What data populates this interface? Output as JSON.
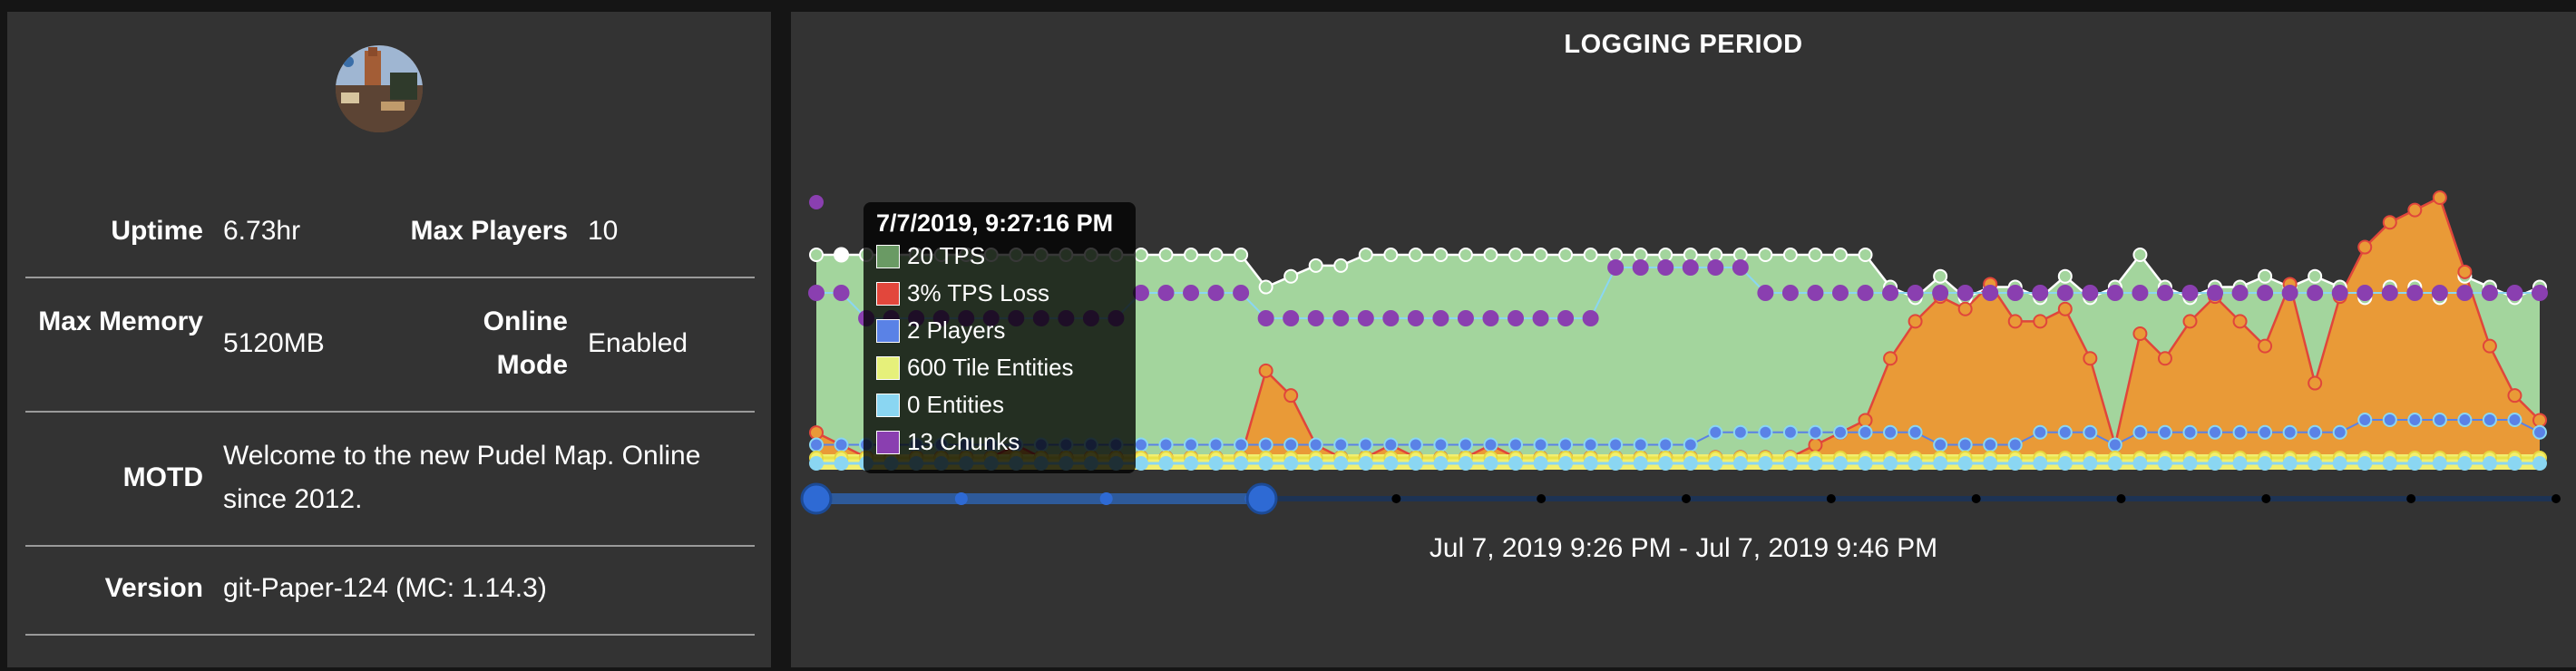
{
  "server": {
    "avatar": "server-avatar",
    "rows": [
      {
        "label": "Uptime",
        "value": "6.73hr",
        "label2": "Max Players",
        "value2": "10"
      },
      {
        "label": "Max Memory",
        "value": "5120MB",
        "label2": "Online Mode",
        "value2": "Enabled"
      },
      {
        "label": "MOTD",
        "value": "Welcome to the new Pudel Map. Online since 2012."
      },
      {
        "label": "Version",
        "value": "git-Paper-124 (MC: 1.14.3)"
      }
    ]
  },
  "chart": {
    "title": "LOGGING PERIOD",
    "range_label": "Jul 7, 2019 9:26 PM - Jul 7, 2019 9:46 PM",
    "tooltip": {
      "title": "7/7/2019, 9:27:16 PM",
      "items": [
        {
          "text": "20 TPS",
          "color": "#6a9a64"
        },
        {
          "text": "3% TPS Loss",
          "color": "#e2473c"
        },
        {
          "text": "2 Players",
          "color": "#5a82e6"
        },
        {
          "text": "600 Tile Entities",
          "color": "#e6f07a"
        },
        {
          "text": "0 Entities",
          "color": "#8ad6f2"
        },
        {
          "text": "13 Chunks",
          "color": "#8a3fb0"
        }
      ]
    }
  },
  "chart_data": {
    "type": "area",
    "series": [
      {
        "name": "TPS",
        "color": "#a3d59d",
        "values": [
          20,
          20,
          20,
          20,
          20,
          20,
          20,
          20,
          20,
          20,
          20,
          20,
          20,
          20,
          20,
          20,
          20,
          20,
          17,
          18,
          19,
          19,
          20,
          20,
          20,
          20,
          20,
          20,
          20,
          20,
          20,
          20,
          20,
          20,
          20,
          20,
          20,
          20,
          20,
          20,
          20,
          20,
          20,
          17,
          16,
          18,
          16,
          17,
          17,
          16,
          18,
          16,
          17,
          20,
          17,
          16,
          17,
          17,
          18,
          17,
          18,
          17,
          16,
          17,
          17,
          16,
          18,
          17,
          16,
          17
        ]
      },
      {
        "name": "TPS Loss",
        "color": "#e99a37",
        "values": [
          3,
          2,
          1,
          1,
          1,
          1,
          1,
          1,
          2,
          1,
          1,
          1,
          1,
          1,
          1,
          1,
          1,
          1,
          8,
          6,
          2,
          1,
          1,
          2,
          1,
          1,
          1,
          2,
          1,
          1,
          1,
          1,
          1,
          1,
          1,
          1,
          1,
          1,
          1,
          1,
          2,
          3,
          4,
          9,
          12,
          14,
          13,
          15,
          12,
          12,
          13,
          9,
          2,
          11,
          9,
          12,
          14,
          12,
          10,
          15,
          7,
          14,
          18,
          20,
          21,
          22,
          16,
          10,
          6,
          4
        ]
      },
      {
        "name": "Players",
        "color": "#5a82e6",
        "values": [
          2,
          2,
          2,
          2,
          2,
          2,
          2,
          2,
          2,
          2,
          2,
          2,
          2,
          2,
          2,
          2,
          2,
          2,
          2,
          2,
          2,
          2,
          2,
          2,
          2,
          2,
          2,
          2,
          2,
          2,
          2,
          2,
          2,
          2,
          2,
          2,
          3,
          3,
          3,
          3,
          3,
          3,
          3,
          3,
          3,
          2,
          2,
          2,
          2,
          3,
          3,
          3,
          2,
          3,
          3,
          3,
          3,
          3,
          3,
          3,
          3,
          3,
          4,
          4,
          4,
          4,
          4,
          4,
          4,
          3
        ]
      },
      {
        "name": "Tile Entities",
        "color": "#f1ef6f",
        "values": [
          600,
          600,
          600,
          600,
          600,
          600,
          600,
          600,
          600,
          600,
          600,
          600,
          600,
          600,
          600,
          600,
          600,
          600,
          600,
          600,
          600,
          600,
          600,
          600,
          600,
          600,
          600,
          600,
          600,
          600,
          600,
          600,
          600,
          600,
          600,
          600,
          600,
          600,
          600,
          600,
          600,
          600,
          600,
          600,
          600,
          600,
          600,
          600,
          600,
          600,
          600,
          600,
          600,
          600,
          600,
          600,
          600,
          600,
          600,
          600,
          600,
          600,
          600,
          600,
          600,
          600,
          600,
          600,
          600,
          600
        ]
      },
      {
        "name": "Entities",
        "color": "#8ad6f2",
        "values": [
          0,
          0,
          0,
          0,
          0,
          0,
          0,
          0,
          0,
          0,
          0,
          0,
          0,
          0,
          0,
          0,
          0,
          0,
          0,
          0,
          0,
          0,
          0,
          0,
          0,
          0,
          0,
          0,
          0,
          0,
          0,
          0,
          0,
          0,
          0,
          0,
          0,
          0,
          0,
          0,
          0,
          0,
          0,
          0,
          0,
          0,
          0,
          0,
          0,
          0,
          0,
          0,
          0,
          0,
          0,
          0,
          0,
          0,
          0,
          0,
          0,
          0,
          0,
          0,
          0,
          0,
          0,
          0,
          0,
          0
        ]
      },
      {
        "name": "Chunks",
        "color": "#8a3fb0",
        "values": [
          13,
          13,
          12,
          12,
          12,
          12,
          12,
          12,
          12,
          12,
          12,
          12,
          12,
          13,
          13,
          13,
          13,
          13,
          12,
          12,
          12,
          12,
          12,
          12,
          12,
          12,
          12,
          12,
          12,
          12,
          12,
          12,
          14,
          14,
          14,
          14,
          14,
          14,
          13,
          13,
          13,
          13,
          13,
          13,
          13,
          13,
          13,
          13,
          13,
          13,
          13,
          13,
          13,
          13,
          13,
          13,
          13,
          13,
          13,
          13,
          13,
          13,
          13,
          13,
          13,
          13,
          13,
          13,
          13,
          13
        ]
      }
    ],
    "range_slider": {
      "selected_fraction": [
        0,
        0.25
      ]
    }
  }
}
